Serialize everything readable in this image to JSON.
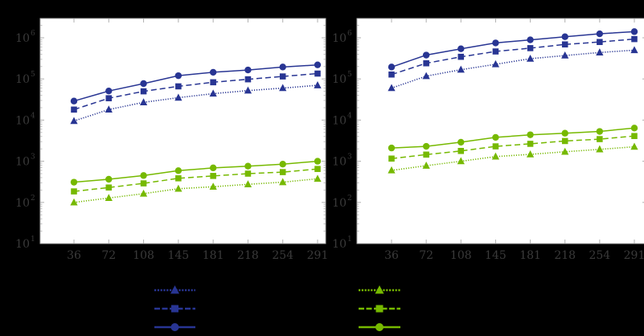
{
  "figure": {
    "background": "#000000",
    "plot_background": "#ffffff",
    "axis_color": "#b0b0b0",
    "tick_label_color": "#3a3a3a"
  },
  "colors": {
    "blue": "#283593",
    "green": "#76b900"
  },
  "legend": {
    "position": "bottom",
    "entries": [
      {
        "color": "blue",
        "dash": "dotted",
        "marker": "triangle",
        "label": ""
      },
      {
        "color": "blue",
        "dash": "dashed",
        "marker": "square",
        "label": ""
      },
      {
        "color": "blue",
        "dash": "solid",
        "marker": "circle",
        "label": ""
      },
      {
        "color": "green",
        "dash": "dotted",
        "marker": "triangle",
        "label": ""
      },
      {
        "color": "green",
        "dash": "dashed",
        "marker": "square",
        "label": ""
      },
      {
        "color": "green",
        "dash": "solid",
        "marker": "circle",
        "label": ""
      }
    ]
  },
  "chart_data": [
    {
      "type": "line",
      "title": "",
      "xlabel": "",
      "ylabel": "",
      "yscale": "log",
      "ylim": [
        10,
        3000000
      ],
      "grid": false,
      "x": [
        36,
        72,
        108,
        145,
        181,
        218,
        254,
        291
      ],
      "xticks": [
        "36",
        "72",
        "108",
        "145",
        "181",
        "218",
        "254",
        "291"
      ],
      "yticks": [
        {
          "base": "10",
          "exp": "1"
        },
        {
          "base": "10",
          "exp": "2"
        },
        {
          "base": "10",
          "exp": "3"
        },
        {
          "base": "10",
          "exp": "4"
        },
        {
          "base": "10",
          "exp": "5"
        },
        {
          "base": "10",
          "exp": "6"
        }
      ],
      "series": [
        {
          "name": "blue-circle-solid",
          "color": "blue",
          "dash": "solid",
          "marker": "circle",
          "values": [
            29000,
            51000,
            77000,
            120000,
            145000,
            165000,
            195000,
            220000
          ]
        },
        {
          "name": "blue-square-dashed",
          "color": "blue",
          "dash": "dashed",
          "marker": "square",
          "values": [
            18000,
            34000,
            50000,
            66000,
            83000,
            98000,
            115000,
            135000
          ]
        },
        {
          "name": "blue-triangle-dotted",
          "color": "blue",
          "dash": "dotted",
          "marker": "triangle",
          "values": [
            9500,
            18000,
            27000,
            35000,
            44000,
            52000,
            60000,
            70000
          ]
        },
        {
          "name": "green-circle-solid",
          "color": "green",
          "dash": "solid",
          "marker": "circle",
          "values": [
            310,
            365,
            450,
            590,
            690,
            760,
            850,
            1000
          ]
        },
        {
          "name": "green-square-dashed",
          "color": "green",
          "dash": "dashed",
          "marker": "square",
          "values": [
            185,
            230,
            290,
            385,
            440,
            500,
            545,
            650
          ]
        },
        {
          "name": "green-triangle-dotted",
          "color": "green",
          "dash": "dotted",
          "marker": "triangle",
          "values": [
            100,
            128,
            163,
            215,
            240,
            275,
            310,
            375
          ]
        }
      ]
    },
    {
      "type": "line",
      "title": "",
      "xlabel": "",
      "ylabel": "",
      "yscale": "log",
      "ylim": [
        10,
        3000000
      ],
      "grid": false,
      "x": [
        36,
        72,
        108,
        145,
        181,
        218,
        254,
        291
      ],
      "xticks": [
        "36",
        "72",
        "108",
        "145",
        "181",
        "218",
        "254",
        "291"
      ],
      "yticks": [
        {
          "base": "10",
          "exp": "1"
        },
        {
          "base": "10",
          "exp": "2"
        },
        {
          "base": "10",
          "exp": "3"
        },
        {
          "base": "10",
          "exp": "4"
        },
        {
          "base": "10",
          "exp": "5"
        },
        {
          "base": "10",
          "exp": "6"
        }
      ],
      "series": [
        {
          "name": "blue-circle-solid",
          "color": "blue",
          "dash": "solid",
          "marker": "circle",
          "values": [
            195000,
            380000,
            540000,
            750000,
            890000,
            1060000,
            1250000,
            1410000
          ]
        },
        {
          "name": "blue-square-dashed",
          "color": "blue",
          "dash": "dashed",
          "marker": "square",
          "values": [
            128000,
            240000,
            345000,
            465000,
            560000,
            690000,
            790000,
            930000
          ]
        },
        {
          "name": "blue-triangle-dotted",
          "color": "blue",
          "dash": "dotted",
          "marker": "triangle",
          "values": [
            60000,
            117000,
            168000,
            227000,
            310000,
            370000,
            440000,
            500000
          ]
        },
        {
          "name": "green-circle-solid",
          "color": "green",
          "dash": "solid",
          "marker": "circle",
          "values": [
            2100,
            2300,
            2900,
            3800,
            4400,
            4800,
            5300,
            6400
          ]
        },
        {
          "name": "green-square-dashed",
          "color": "green",
          "dash": "dashed",
          "marker": "square",
          "values": [
            1160,
            1450,
            1780,
            2300,
            2650,
            3100,
            3450,
            4100
          ]
        },
        {
          "name": "green-triangle-dotted",
          "color": "green",
          "dash": "dotted",
          "marker": "triangle",
          "values": [
            600,
            780,
            1000,
            1300,
            1470,
            1700,
            1950,
            2250
          ]
        }
      ]
    }
  ]
}
